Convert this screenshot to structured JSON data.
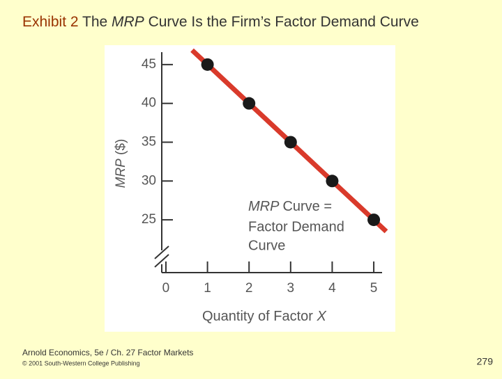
{
  "slide": {
    "title_parts": [
      "Exhibit 2",
      "The",
      "MRP",
      "Curve Is the Firm’s Factor Demand Curve"
    ],
    "footer_source": "Arnold Economics, 5e / Ch. 27  Factor Markets",
    "footer_copyright": "© 2001 South-Western College Publishing",
    "page_number": "279"
  },
  "chart_data": {
    "type": "line",
    "y_label_parts": [
      "MRP",
      "($)"
    ],
    "x_label_parts": [
      "Quantity of Factor",
      "X"
    ],
    "annotation_parts": [
      "MRP",
      "Curve =",
      "Factor Demand",
      "Curve"
    ],
    "x": [
      1,
      2,
      3,
      4,
      5
    ],
    "values": [
      45,
      40,
      35,
      30,
      25
    ],
    "color": "#d93a2b",
    "marker_color": "#1a1a1a",
    "xlim": [
      -0.1,
      5.2
    ],
    "xticks": [
      0,
      1,
      2,
      3,
      4,
      5
    ],
    "ylim": [
      18.2,
      46.6
    ],
    "yticks": [
      25,
      30,
      35,
      40,
      45
    ]
  }
}
